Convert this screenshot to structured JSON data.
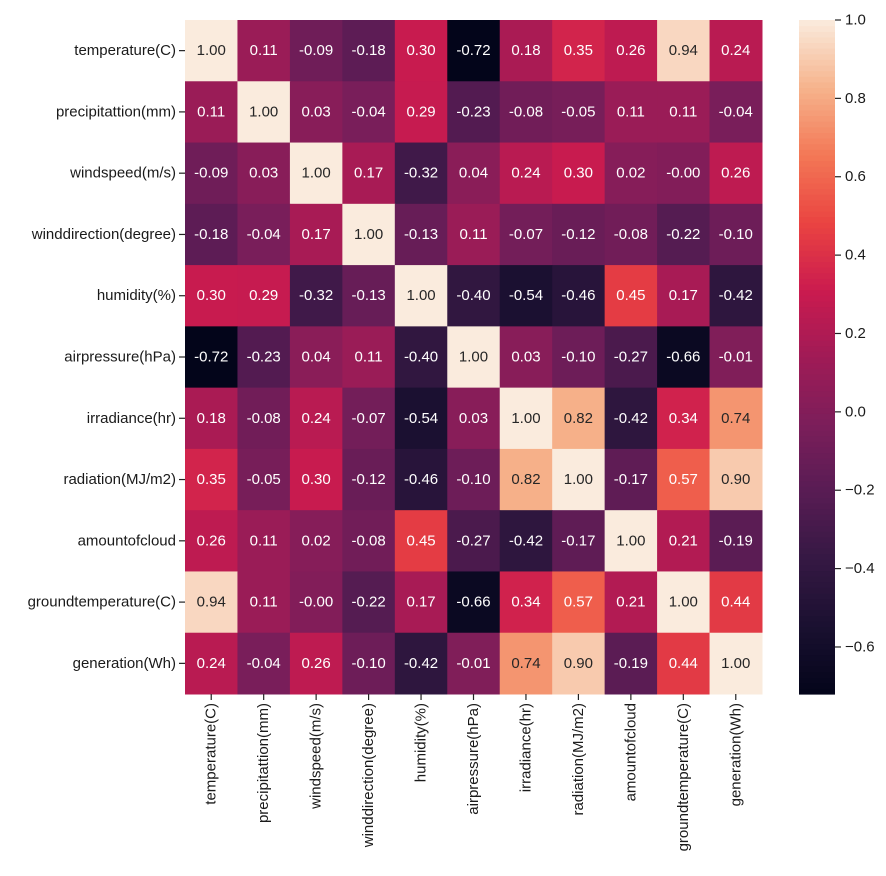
{
  "chart_data": {
    "type": "heatmap",
    "title": "",
    "colormap": "rocket",
    "row_labels": [
      "temperature(C)",
      "precipitattion(mm)",
      "windspeed(m/s)",
      "winddirection(degree)",
      "humidity(%)",
      "airpressure(hPa)",
      "irradiance(hr)",
      "radiation(MJ/m2)",
      "amountofcloud",
      "groundtemperature(C)",
      "generation(Wh)"
    ],
    "col_labels": [
      "temperature(C)",
      "precipitattion(mm)",
      "windspeed(m/s)",
      "winddirection(degree)",
      "humidity(%)",
      "airpressure(hPa)",
      "irradiance(hr)",
      "radiation(MJ/m2)",
      "amountofcloud",
      "groundtemperature(C)",
      "generation(Wh)"
    ],
    "matrix": [
      [
        1.0,
        0.11,
        -0.09,
        -0.18,
        0.3,
        -0.72,
        0.18,
        0.35,
        0.26,
        0.94,
        0.24
      ],
      [
        0.11,
        1.0,
        0.03,
        -0.04,
        0.29,
        -0.23,
        -0.08,
        -0.05,
        0.11,
        0.11,
        -0.04
      ],
      [
        -0.09,
        0.03,
        1.0,
        0.17,
        -0.32,
        0.04,
        0.24,
        0.3,
        0.02,
        -0.0,
        0.26
      ],
      [
        -0.18,
        -0.04,
        0.17,
        1.0,
        -0.13,
        0.11,
        -0.07,
        -0.12,
        -0.08,
        -0.22,
        -0.1
      ],
      [
        0.3,
        0.29,
        -0.32,
        -0.13,
        1.0,
        -0.4,
        -0.54,
        -0.46,
        0.45,
        0.17,
        -0.42
      ],
      [
        -0.72,
        -0.23,
        0.04,
        0.11,
        -0.4,
        1.0,
        0.03,
        -0.1,
        -0.27,
        -0.66,
        -0.01
      ],
      [
        0.18,
        -0.08,
        0.24,
        -0.07,
        -0.54,
        0.03,
        1.0,
        0.82,
        -0.42,
        0.34,
        0.74
      ],
      [
        0.35,
        -0.05,
        0.3,
        -0.12,
        -0.46,
        -0.1,
        0.82,
        1.0,
        -0.17,
        0.57,
        0.9
      ],
      [
        0.26,
        0.11,
        0.02,
        -0.08,
        0.45,
        -0.27,
        -0.42,
        -0.17,
        1.0,
        0.21,
        -0.19
      ],
      [
        0.94,
        0.11,
        -0.0,
        -0.22,
        0.17,
        -0.66,
        0.34,
        0.57,
        0.21,
        1.0,
        0.44
      ],
      [
        0.24,
        -0.04,
        0.26,
        -0.1,
        -0.42,
        -0.01,
        0.74,
        0.9,
        -0.19,
        0.44,
        1.0
      ]
    ],
    "value_range": [
      -0.72,
      1.0
    ],
    "colorbar": {
      "ticks": [
        1.0,
        0.8,
        0.6,
        0.4,
        0.2,
        0.0,
        -0.2,
        -0.4,
        -0.6
      ],
      "tick_labels": [
        "1.0",
        "0.8",
        "0.6",
        "0.4",
        "0.2",
        "0.0",
        "−0.2",
        "−0.4",
        "−0.6"
      ]
    },
    "annotation_format": "0.00"
  }
}
